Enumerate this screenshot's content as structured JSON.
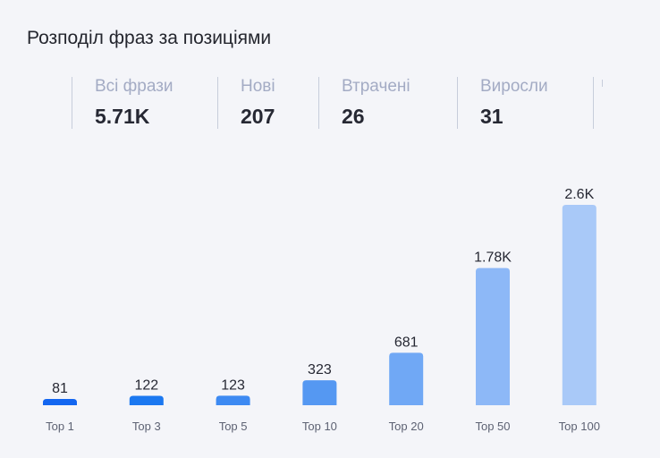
{
  "title": "Розподіл фраз за позиціями",
  "stats": [
    {
      "label": "Всі фрази",
      "value": "5.71K"
    },
    {
      "label": "Нові",
      "value": "207"
    },
    {
      "label": "Втрачені",
      "value": "26"
    },
    {
      "label": "Виросли",
      "value": "31"
    }
  ],
  "chart_data": {
    "type": "bar",
    "categories": [
      "Top 1",
      "Top 3",
      "Top 5",
      "Top 10",
      "Top 20",
      "Top 50",
      "Top 100"
    ],
    "values": [
      81,
      122,
      123,
      323,
      681,
      1780,
      2600
    ],
    "data_labels": [
      "81",
      "122",
      "123",
      "323",
      "681",
      "1.78K",
      "2.6K"
    ],
    "colors": [
      "#1366f0",
      "#1b78f0",
      "#3d8af2",
      "#5598f2",
      "#70a8f5",
      "#8db8f7",
      "#a9c9f8"
    ],
    "grid": false
  }
}
